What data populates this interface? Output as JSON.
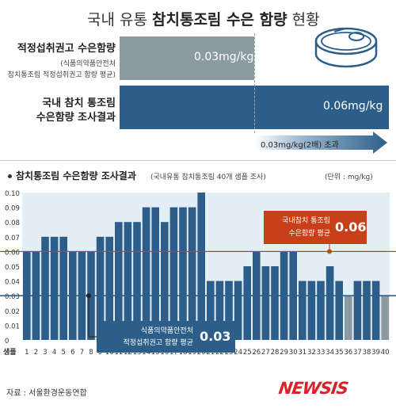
{
  "header": {
    "title_prefix": "국내 유통 ",
    "title_bold": "참치통조림 수은 함량",
    "title_suffix": " 현황"
  },
  "comparison": {
    "row1": {
      "label": "적정섭취권고 수은함량",
      "sublabel_1": "(식품의약품안전처",
      "sublabel_2": "참치통조림 적정섭취권고 함량 평균)",
      "value_text": "0.03mg/kg",
      "value": 0.03,
      "color": "#8c9aa2"
    },
    "row2": {
      "label_1": "국내 참치 통조림",
      "label_2": "수은함량 조사결과",
      "value_text": "0.06mg/kg",
      "value": 0.06,
      "color": "#2d5e8a"
    },
    "arrow_text": "0.03mg/kg(2배) 초과"
  },
  "section": {
    "title": "참치통조림 수은함량 조사결과",
    "subtitle": "(국내유통 참치통조림 40개 샘플 조사)",
    "unit": "(단위 : mg/kg)"
  },
  "annotations": {
    "avg_box_label_1": "국내참치 통조림",
    "avg_box_label_2": "수은함량 평균",
    "avg_box_value": "0.06",
    "rec_box_label_1": "식품의약품안전처",
    "rec_box_label_2": "적정섭취권고 함량 평균",
    "rec_box_value": "0.03"
  },
  "footer": {
    "source": "자료 : 서울환경운동연합",
    "logo": "NEWSIS"
  },
  "colors": {
    "bar": "#2d5e8a",
    "bar_gray": "#8c9aa2",
    "plot_bg": "#e4eef6",
    "avg_line": "#c8401a",
    "rec_line": "#2d5e8a",
    "logo_red": "#d8232a"
  },
  "chart_data": {
    "type": "bar",
    "title": "참치통조림 수은함량 조사결과",
    "subtitle": "(국내유통 참치통조림 40개 샘플 조사)",
    "xlabel": "샘플",
    "ylabel": "",
    "unit": "(단위 : mg/kg)",
    "ylim": [
      0,
      0.1
    ],
    "yticks": [
      "0.10",
      "0.09",
      "0.08",
      "0.07",
      "0.06",
      "0.05",
      "0.04",
      "0.03",
      "0.02",
      "0.01",
      "0"
    ],
    "categories": [
      "1",
      "2",
      "3",
      "4",
      "5",
      "6",
      "7",
      "8",
      "9",
      "10",
      "11",
      "12",
      "13",
      "14",
      "15",
      "16",
      "17",
      "18",
      "19",
      "20",
      "21",
      "22",
      "23",
      "24",
      "25",
      "26",
      "27",
      "28",
      "29",
      "30",
      "31",
      "32",
      "33",
      "34",
      "35",
      "36",
      "37",
      "38",
      "39",
      "40"
    ],
    "values": [
      0.06,
      0.06,
      0.07,
      0.07,
      0.07,
      0.06,
      0.06,
      0.06,
      0.07,
      0.07,
      0.08,
      0.08,
      0.08,
      0.09,
      0.09,
      0.08,
      0.09,
      0.09,
      0.09,
      0.1,
      0.04,
      0.04,
      0.04,
      0.04,
      0.05,
      0.06,
      0.05,
      0.05,
      0.06,
      0.06,
      0.04,
      0.04,
      0.04,
      0.05,
      0.04,
      0.03,
      0.04,
      0.04,
      0.04,
      0.03
    ],
    "gray_samples": [
      "36",
      "40"
    ],
    "reference_lines": [
      {
        "label": "국내참치 통조림 수은함량 평균",
        "value": 0.06
      },
      {
        "label": "식품의약품안전처 적정섭취권고 함량 평균",
        "value": 0.03
      }
    ],
    "grid": false,
    "legend": "none"
  }
}
